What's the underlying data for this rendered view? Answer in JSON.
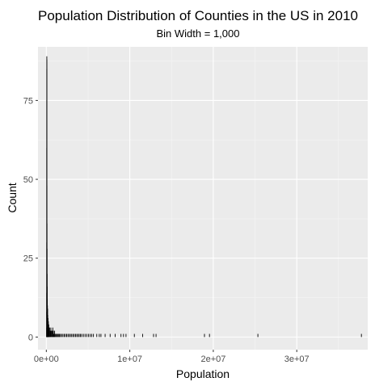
{
  "chart_data": {
    "type": "bar",
    "title": "Population Distribution of Counties in the US in 2010",
    "subtitle": "Bin Width = 1,000",
    "xlabel": "Population",
    "ylabel": "Count",
    "xlim": [
      -1000000,
      38500000
    ],
    "ylim": [
      -4,
      92
    ],
    "x_ticks": [
      0,
      10000000,
      20000000,
      30000000
    ],
    "x_tick_labels": [
      "0e+00",
      "1e+07",
      "2e+07",
      "3e+07"
    ],
    "y_ticks": [
      0,
      25,
      50,
      75
    ],
    "y_tick_labels": [
      "0",
      "25",
      "50",
      "75"
    ],
    "grid": true,
    "panel_background": "#ebebeb",
    "bar_color": "#000000",
    "bin_width": 1000,
    "bins": [
      {
        "x": 2000,
        "count": 3
      },
      {
        "x": 5000,
        "count": 8
      },
      {
        "x": 7000,
        "count": 14
      },
      {
        "x": 9000,
        "count": 30
      },
      {
        "x": 11000,
        "count": 60
      },
      {
        "x": 12000,
        "count": 75
      },
      {
        "x": 13000,
        "count": 85
      },
      {
        "x": 14000,
        "count": 89
      },
      {
        "x": 16000,
        "count": 88
      },
      {
        "x": 18000,
        "count": 84
      },
      {
        "x": 20000,
        "count": 80
      },
      {
        "x": 23000,
        "count": 72
      },
      {
        "x": 26000,
        "count": 60
      },
      {
        "x": 30000,
        "count": 48
      },
      {
        "x": 35000,
        "count": 36
      },
      {
        "x": 40000,
        "count": 28
      },
      {
        "x": 50000,
        "count": 20
      },
      {
        "x": 60000,
        "count": 16
      },
      {
        "x": 75000,
        "count": 12
      },
      {
        "x": 90000,
        "count": 10
      },
      {
        "x": 110000,
        "count": 9
      },
      {
        "x": 130000,
        "count": 7
      },
      {
        "x": 160000,
        "count": 6
      },
      {
        "x": 200000,
        "count": 5
      },
      {
        "x": 250000,
        "count": 4
      },
      {
        "x": 300000,
        "count": 3
      },
      {
        "x": 350000,
        "count": 3
      },
      {
        "x": 420000,
        "count": 2
      },
      {
        "x": 500000,
        "count": 3
      },
      {
        "x": 580000,
        "count": 2
      },
      {
        "x": 650000,
        "count": 2
      },
      {
        "x": 730000,
        "count": 3
      },
      {
        "x": 800000,
        "count": 2
      },
      {
        "x": 880000,
        "count": 1
      },
      {
        "x": 950000,
        "count": 2
      },
      {
        "x": 1050000,
        "count": 1
      },
      {
        "x": 1150000,
        "count": 1
      },
      {
        "x": 1250000,
        "count": 1
      },
      {
        "x": 1350000,
        "count": 1
      },
      {
        "x": 1450000,
        "count": 1
      },
      {
        "x": 1550000,
        "count": 1
      },
      {
        "x": 1650000,
        "count": 1
      },
      {
        "x": 1800000,
        "count": 1
      },
      {
        "x": 1950000,
        "count": 1
      },
      {
        "x": 2100000,
        "count": 1
      },
      {
        "x": 2250000,
        "count": 1
      },
      {
        "x": 2400000,
        "count": 1
      },
      {
        "x": 2550000,
        "count": 1
      },
      {
        "x": 2700000,
        "count": 1
      },
      {
        "x": 2850000,
        "count": 1
      },
      {
        "x": 3000000,
        "count": 1
      },
      {
        "x": 3150000,
        "count": 1
      },
      {
        "x": 3300000,
        "count": 1
      },
      {
        "x": 3450000,
        "count": 1
      },
      {
        "x": 3600000,
        "count": 1
      },
      {
        "x": 3750000,
        "count": 1
      },
      {
        "x": 3900000,
        "count": 1
      },
      {
        "x": 4050000,
        "count": 1
      },
      {
        "x": 4200000,
        "count": 1
      },
      {
        "x": 4400000,
        "count": 1
      },
      {
        "x": 4600000,
        "count": 1
      },
      {
        "x": 4800000,
        "count": 1
      },
      {
        "x": 5000000,
        "count": 1
      },
      {
        "x": 5200000,
        "count": 1
      },
      {
        "x": 5400000,
        "count": 1
      },
      {
        "x": 5600000,
        "count": 1
      },
      {
        "x": 6000000,
        "count": 1
      },
      {
        "x": 6300000,
        "count": 1
      },
      {
        "x": 6500000,
        "count": 1
      },
      {
        "x": 7000000,
        "count": 1
      },
      {
        "x": 7600000,
        "count": 1
      },
      {
        "x": 8200000,
        "count": 1
      },
      {
        "x": 8900000,
        "count": 1
      },
      {
        "x": 9200000,
        "count": 1
      },
      {
        "x": 9500000,
        "count": 1
      },
      {
        "x": 10500000,
        "count": 1
      },
      {
        "x": 11500000,
        "count": 1
      },
      {
        "x": 12800000,
        "count": 1
      },
      {
        "x": 13100000,
        "count": 1
      },
      {
        "x": 18900000,
        "count": 1
      },
      {
        "x": 19500000,
        "count": 1
      },
      {
        "x": 25300000,
        "count": 1
      },
      {
        "x": 37700000,
        "count": 1
      }
    ]
  }
}
